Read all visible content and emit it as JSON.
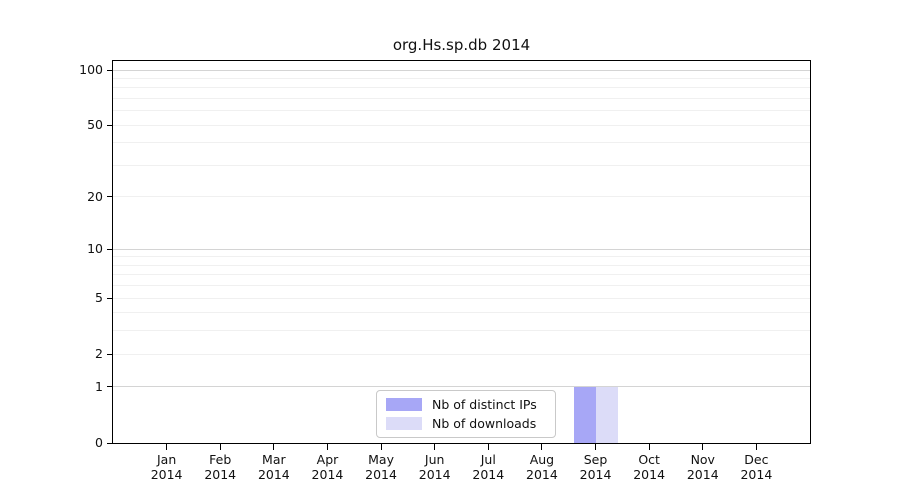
{
  "chart_data": {
    "type": "bar",
    "title": "org.Hs.sp.db 2014",
    "categories": [
      "Jan 2014",
      "Feb 2014",
      "Mar 2014",
      "Apr 2014",
      "May 2014",
      "Jun 2014",
      "Jul 2014",
      "Aug 2014",
      "Sep 2014",
      "Oct 2014",
      "Nov 2014",
      "Dec 2014"
    ],
    "series": [
      {
        "name": "Nb of distinct IPs",
        "color": "#a7a7f6",
        "values": [
          0,
          0,
          0,
          0,
          0,
          0,
          0,
          0,
          1,
          0,
          0,
          0
        ]
      },
      {
        "name": "Nb of downloads",
        "color": "#dcdcf8",
        "values": [
          0,
          0,
          0,
          0,
          0,
          0,
          0,
          0,
          1,
          0,
          0,
          0
        ]
      }
    ],
    "y_scale": "log1p",
    "y_ticks": [
      0,
      1,
      2,
      5,
      10,
      20,
      50,
      100
    ],
    "gridline_values": [
      1,
      2,
      3,
      4,
      5,
      6,
      7,
      8,
      9,
      10,
      20,
      30,
      40,
      50,
      60,
      70,
      80,
      90,
      100
    ],
    "major_gridline_values": [
      1,
      10,
      100
    ],
    "ylim": [
      0,
      112
    ],
    "grid": "on",
    "legend_position": "lower center",
    "colors": {
      "axis": "#000000",
      "grid_minor": "#f0f0f0",
      "grid_major": "#d4d4d4",
      "legend_border": "#c9c9c9",
      "background": "#ffffff"
    }
  }
}
